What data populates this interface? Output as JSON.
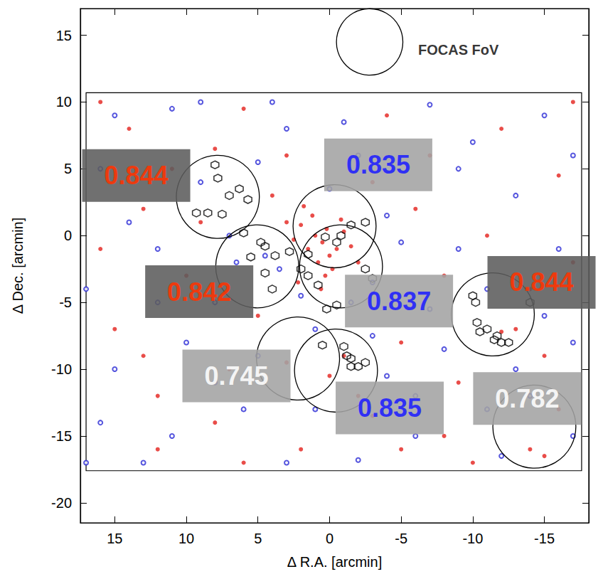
{
  "chart_data": {
    "type": "scatter",
    "xlabel": "Δ R.A. [arcmin]",
    "ylabel": "Δ Dec. [arcmin]",
    "xlim": [
      17.4,
      -18.1
    ],
    "ylim": [
      -21.5,
      17
    ],
    "xticks": [
      15,
      10,
      5,
      0,
      -5,
      -10,
      -15
    ],
    "yticks": [
      -20,
      -15,
      -10,
      -5,
      0,
      5,
      10,
      15
    ],
    "grid": false,
    "series": [
      {
        "color": "#e3211c",
        "marker": "dot",
        "x": [
          0.5,
          1,
          -0.5,
          0,
          1.5,
          0.2,
          -1,
          2,
          0.8,
          -0.2,
          1.2,
          -1.5,
          2.5,
          0.3,
          -0.8,
          1.8,
          3,
          -2,
          0.6,
          2.2,
          14,
          8,
          6,
          -4,
          -12,
          -16,
          -17,
          -14,
          -13,
          -12,
          -15,
          -15,
          -14,
          -8,
          -3,
          2,
          8,
          12,
          15,
          16,
          13,
          5,
          10,
          11,
          4,
          -6,
          -8,
          -5,
          -9,
          7,
          3,
          -1,
          0,
          -2,
          6,
          -10,
          16,
          -17,
          12,
          9,
          -3,
          -11,
          -7,
          3,
          -5,
          -16,
          13
        ],
        "values": [
          -0.5,
          0,
          -1,
          -1.5,
          -1,
          0.5,
          0.3,
          0.8,
          -2,
          -2.5,
          1.5,
          -0.8,
          -0.3,
          -3,
          1.2,
          2.2,
          1,
          -2,
          -4,
          -3.5,
          8,
          6.5,
          9.5,
          9,
          8,
          4.5,
          -2,
          -4,
          -7,
          -7.2,
          -9,
          -16.5,
          -16,
          -15,
          -13.5,
          -16,
          -14,
          -12,
          -7,
          -1,
          2,
          -6,
          -3,
          5,
          3,
          2,
          -3,
          -8,
          -11,
          -10,
          -9.5,
          -9,
          -10.5,
          -12,
          -17,
          -17,
          10,
          10,
          -16,
          1,
          4,
          0,
          6,
          6,
          -16,
          -13,
          -9
        ]
      },
      {
        "color": "#2b2bd6",
        "marker": "open_circle",
        "x": [
          15,
          11,
          4,
          -1,
          -7,
          -15,
          -17,
          16,
          9,
          5,
          -2,
          -9,
          -13,
          14,
          7,
          -4,
          -9,
          -16,
          17,
          12,
          6.5,
          4.5,
          2,
          -3,
          -7,
          -11,
          15,
          10,
          5,
          1,
          -3,
          -8,
          -13,
          -17,
          16,
          11,
          6,
          1,
          -4,
          -6,
          -11,
          -14,
          -17,
          13,
          3,
          -2,
          -12,
          8,
          -5,
          0,
          3.5,
          -1.5,
          9,
          -10,
          17,
          -15,
          3,
          12,
          -6,
          8
        ],
        "values": [
          9,
          9.5,
          10,
          8.5,
          9.8,
          9,
          6,
          5,
          4,
          5.5,
          6,
          5,
          3,
          1,
          0,
          1.5,
          -1,
          -1,
          -4,
          -5,
          -2,
          -1.5,
          -4.5,
          -3.5,
          -5.5,
          -4,
          -10,
          -8,
          -9,
          -7,
          -7.5,
          -8.5,
          -10,
          -8,
          -14,
          -15,
          -13,
          -13,
          -10.5,
          -15,
          -13,
          -12,
          -15,
          -17,
          -17,
          -16.8,
          -16.5,
          -5,
          -0.5,
          3.5,
          -2.5,
          -5,
          10,
          7,
          -17,
          -6,
          8,
          -1,
          -12,
          -11
        ]
      },
      {
        "color": "#000000",
        "marker": "hexagon",
        "x": [
          8,
          7.8,
          7,
          6.3,
          8.5,
          9.3,
          7.5,
          5.7,
          6,
          4.8,
          4.5,
          3.8,
          2.8,
          1.5,
          4.5,
          5.5,
          4,
          0.3,
          -0.8,
          -1.5,
          -2.5,
          -0.5,
          1.5,
          0.8,
          2,
          -3,
          -2.5,
          0.2,
          -0.5,
          -10,
          -10.2,
          -10.3,
          -10.5,
          -11,
          -11.5,
          -12,
          -12.5,
          -14,
          -11.7,
          0.5,
          -1,
          -1.2,
          -1.5,
          -2,
          -2.5,
          -1.5
        ],
        "values": [
          5.3,
          4.3,
          3,
          3.5,
          1.7,
          1.7,
          1.6,
          2.7,
          0.2,
          -0.5,
          -0.8,
          -1.5,
          -1.2,
          -1.4,
          -2.8,
          -1.6,
          -4,
          -0.1,
          0,
          0.8,
          1,
          -0.5,
          -3,
          -3.7,
          -2.5,
          -3.2,
          -2.5,
          -5.5,
          -5.2,
          -4.5,
          -5,
          -6.5,
          -7.2,
          -7,
          -7.8,
          -8,
          -8,
          -5,
          -7.5,
          -8.2,
          -8.3,
          -9,
          -9.2,
          -9.8,
          -9.5,
          -9.8
        ]
      }
    ],
    "field": {
      "x": [
        17.0,
        -17.6
      ],
      "y": [
        -17.6,
        10.7
      ]
    },
    "fov_circles": [
      {
        "x": 7.8,
        "y": 2.9,
        "r": 3
      },
      {
        "x": -0.35,
        "y": 0.7,
        "r": 3
      },
      {
        "x": 5.05,
        "y": -2.3,
        "r": 3
      },
      {
        "x": -0.8,
        "y": -2.3,
        "r": 3
      },
      {
        "x": -11.4,
        "y": -5.9,
        "r": 3
      },
      {
        "x": 2.2,
        "y": -9.2,
        "r": 3
      },
      {
        "x": -0.45,
        "y": -10.1,
        "r": 3
      },
      {
        "x": -14.3,
        "y": -14.3,
        "r": 3
      }
    ],
    "redshift_labels": [
      {
        "text": "0.844",
        "x": 13.5,
        "y": 4.5,
        "color": "#ff3300"
      },
      {
        "text": "0.835",
        "x": -3.4,
        "y": 5.3,
        "color": "#1f1fff"
      },
      {
        "text": "0.842",
        "x": 9.1,
        "y": -4.2,
        "color": "#ff3300"
      },
      {
        "text": "0.837",
        "x": -4.85,
        "y": -4.9,
        "color": "#1f1fff"
      },
      {
        "text": "0.844",
        "x": -14.8,
        "y": -3.5,
        "color": "#ff3300"
      },
      {
        "text": "0.745",
        "x": 6.5,
        "y": -10.5,
        "color": "#ffffff"
      },
      {
        "text": "0.835",
        "x": -4.2,
        "y": -12.9,
        "color": "#1f1fff"
      },
      {
        "text": "0.782",
        "x": -13.8,
        "y": -12.2,
        "color": "#ffffff"
      }
    ],
    "fov_key": {
      "text": "FOCAS FoV",
      "x": -9.0,
      "y": 13.9,
      "circle": {
        "x": -2.8,
        "y": 14.5,
        "r": 2.4
      }
    }
  }
}
